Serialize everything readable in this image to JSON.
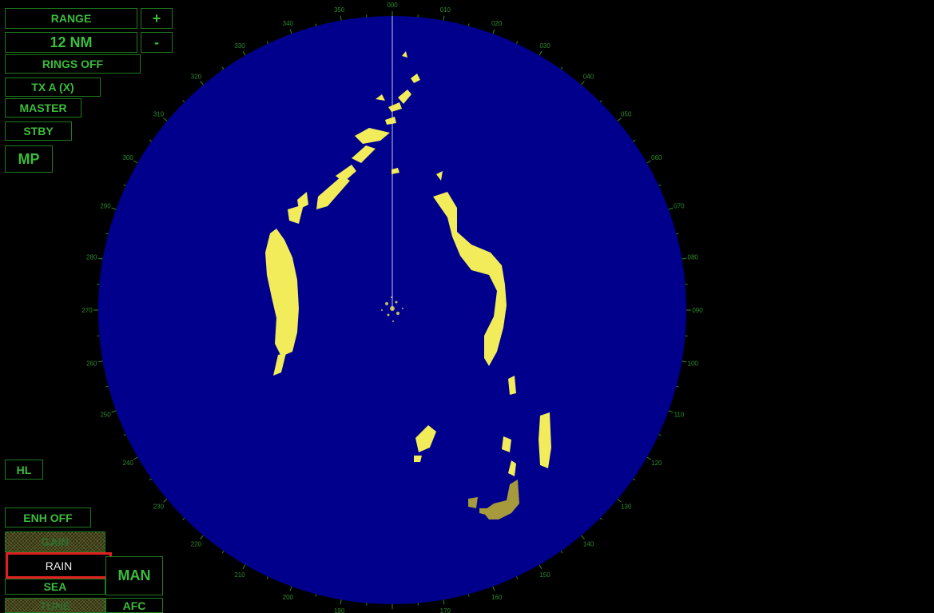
{
  "controls": {
    "range_label": "RANGE",
    "range_plus": "+",
    "range_value": "12 NM",
    "range_minus": "-",
    "rings": "RINGS OFF",
    "tx": "TX A (X)",
    "master": "MASTER",
    "stby": "STBY",
    "mp": "MP",
    "hl": "HL",
    "enh": "ENH OFF",
    "gain": "GAIN",
    "rain": "RAIN",
    "man": "MAN",
    "sea": "SEA",
    "tune": "TUNE",
    "afc": "AFC"
  },
  "scope": {
    "bearing_labels": [
      "000",
      "010",
      "020",
      "030",
      "040",
      "050",
      "060",
      "070",
      "080",
      "090",
      "100",
      "110",
      "120",
      "130",
      "140",
      "150",
      "160",
      "170",
      "180",
      "190",
      "200",
      "210",
      "220",
      "230",
      "240",
      "250",
      "260",
      "270",
      "280",
      "290",
      "300",
      "310",
      "320",
      "330",
      "340",
      "350"
    ],
    "heading_line_bearing": 0
  },
  "colors": {
    "scope_fill": "#00008c",
    "echo": "#f3ec5a",
    "echo_dim": "#a79a3c",
    "ui_green": "#3cbc3c",
    "highlight": "#e02020"
  }
}
